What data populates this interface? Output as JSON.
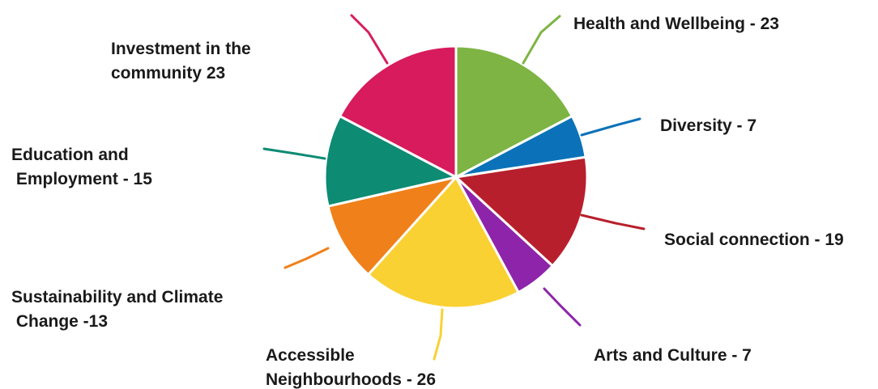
{
  "chart_data": {
    "type": "pie",
    "slices": [
      {
        "label_lines": [
          "Health and Wellbeing - 23"
        ],
        "value": 23,
        "color": "#7db443"
      },
      {
        "label_lines": [
          "Diversity - 7"
        ],
        "value": 7,
        "color": "#0b72b9"
      },
      {
        "label_lines": [
          "Social connection - 19"
        ],
        "value": 19,
        "color": "#b81f2c"
      },
      {
        "label_lines": [
          "Arts and Culture - 7"
        ],
        "value": 7,
        "color": "#8e24aa"
      },
      {
        "label_lines": [
          "Accessible",
          "Neighbourhoods - 26"
        ],
        "value": 26,
        "color": "#f9d133"
      },
      {
        "label_lines": [
          "Sustainability and Climate",
          " Change -13"
        ],
        "value": 13,
        "color": "#f08019"
      },
      {
        "label_lines": [
          "Education and",
          " Employment - 15"
        ],
        "value": 15,
        "color": "#0d8b73"
      },
      {
        "label_lines": [
          "Investment in the",
          "community 23"
        ],
        "value": 23,
        "color": "#d81b5d"
      }
    ],
    "legend": "none"
  }
}
